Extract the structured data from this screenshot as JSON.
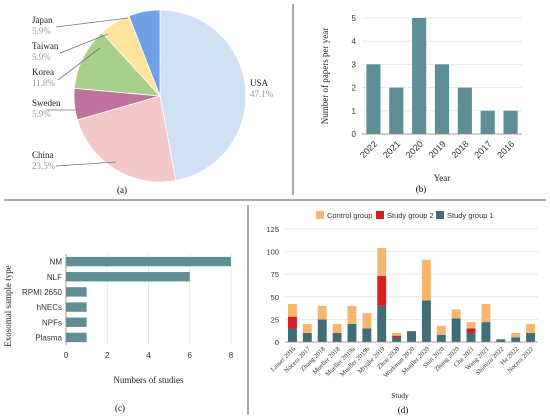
{
  "panel_labels": [
    "(a)",
    "(b)",
    "(c)",
    "(d)"
  ],
  "chart_data": [
    {
      "panel": "(a)",
      "type": "pie",
      "labels": [
        "USA",
        "China",
        "Sweden",
        "Korea",
        "Taiwan",
        "Japan"
      ],
      "values": [
        47.1,
        23.5,
        5.9,
        11.8,
        5.9,
        5.9
      ],
      "value_labels": [
        "47.1%",
        "23.5%",
        "5.9%",
        "11.8%",
        "5.9%",
        "5.9%"
      ],
      "colors": [
        "#cfe0f3",
        "#f2c8c8",
        "#c0729e",
        "#a8cf8c",
        "#ffe39a",
        "#6f9fe6"
      ]
    },
    {
      "panel": "(b)",
      "type": "bar",
      "categories": [
        "2022",
        "2021",
        "2020",
        "2019",
        "2018",
        "2017",
        "2016"
      ],
      "values": [
        3,
        2,
        5,
        3,
        2,
        1,
        1
      ],
      "xlabel": "Year",
      "ylabel": "Number of papers per year",
      "ylim": [
        0,
        5
      ],
      "yticks": [
        "0",
        "1",
        "2",
        "3",
        "4",
        "5"
      ],
      "grid": true,
      "color": "#5f8f96"
    },
    {
      "panel": "(c)",
      "type": "bar",
      "orientation": "horizontal",
      "categories": [
        "NM",
        "NLF",
        "RPMI 2650",
        "hNECs",
        "NPFs",
        "Plasma"
      ],
      "values": [
        8,
        6,
        1,
        1,
        1,
        1
      ],
      "xlabel": "Numbers of studies",
      "ylabel": "Exosomal sample type",
      "xlim": [
        0,
        8
      ],
      "xticks": [
        "0",
        "2",
        "4",
        "6",
        "8"
      ],
      "grid": true,
      "color": "#5f8f96"
    },
    {
      "panel": "(d)",
      "type": "bar",
      "stacked": true,
      "categories": [
        "Lasser 2016",
        "Nocera 2017",
        "Zhang 2018",
        "Mueller 2018",
        "Mueller 2019a",
        "Mueller 2019b",
        "Miyake 2019",
        "Zhou 2020",
        "Workman 2020",
        "Mueller 2020",
        "Shin 2020",
        "Zhang 2020",
        "Cha 2021",
        "Wang 2021",
        "Shimizu 2022",
        "He 2022",
        "Nocera 2022"
      ],
      "series": [
        {
          "name": "Study group 1",
          "color": "#3f6e78",
          "values": [
            15,
            10,
            25,
            10,
            20,
            15,
            40,
            5,
            12,
            46,
            8,
            26,
            10,
            22,
            3,
            5,
            10
          ]
        },
        {
          "name": "Study group 2",
          "color": "#d42020",
          "values": [
            13,
            0,
            0,
            0,
            0,
            0,
            33,
            2,
            0,
            0,
            0,
            0,
            5,
            0,
            0,
            0,
            0
          ]
        },
        {
          "name": "Control group",
          "color": "#f7b66f",
          "values": [
            14,
            10,
            15,
            10,
            20,
            17,
            31,
            3,
            0,
            45,
            10,
            10,
            7,
            20,
            0,
            5,
            10
          ]
        }
      ],
      "legend": [
        "Control group",
        "Study group 2",
        "Study group 1"
      ],
      "legend_position": "top",
      "xlabel": "Study",
      "ylim": [
        0,
        125
      ],
      "yticks": [
        "0",
        "25",
        "50",
        "75",
        "100",
        "125"
      ],
      "grid": true
    }
  ]
}
